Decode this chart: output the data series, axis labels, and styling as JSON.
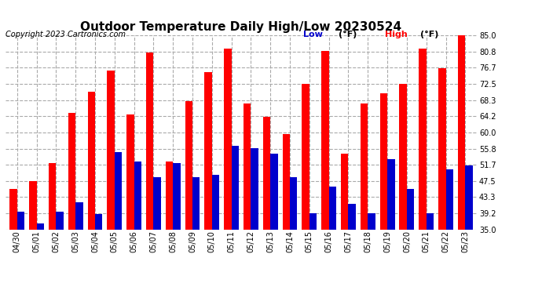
{
  "title": "Outdoor Temperature Daily High/Low 20230524",
  "copyright": "Copyright 2023 Cartronics.com",
  "legend_low": "Low",
  "legend_high": "High",
  "legend_unit": "(°F)",
  "dates": [
    "04/30",
    "05/01",
    "05/02",
    "05/03",
    "05/04",
    "05/05",
    "05/06",
    "05/07",
    "05/08",
    "05/09",
    "05/10",
    "05/11",
    "05/12",
    "05/13",
    "05/14",
    "05/15",
    "05/16",
    "05/17",
    "05/18",
    "05/19",
    "05/20",
    "05/21",
    "05/22",
    "05/23"
  ],
  "highs": [
    45.5,
    47.5,
    52.0,
    65.0,
    70.5,
    76.0,
    64.5,
    80.5,
    52.5,
    68.0,
    75.5,
    81.5,
    67.5,
    64.0,
    59.5,
    72.5,
    81.0,
    54.5,
    67.5,
    70.0,
    72.5,
    81.5,
    76.5,
    85.0
  ],
  "lows": [
    39.5,
    36.5,
    39.5,
    42.0,
    39.0,
    55.0,
    52.5,
    48.5,
    52.0,
    48.5,
    49.0,
    56.5,
    56.0,
    54.5,
    48.5,
    39.2,
    46.0,
    41.5,
    39.2,
    53.0,
    45.5,
    39.2,
    50.5,
    51.5
  ],
  "ylim": [
    35.0,
    85.0
  ],
  "yticks": [
    35.0,
    39.2,
    43.3,
    47.5,
    51.7,
    55.8,
    60.0,
    64.2,
    68.3,
    72.5,
    76.7,
    80.8,
    85.0
  ],
  "bar_width": 0.38,
  "high_color": "#ff0000",
  "low_color": "#0000cc",
  "background_color": "#ffffff",
  "grid_color": "#aaaaaa",
  "title_fontsize": 11,
  "copyright_fontsize": 7,
  "tick_fontsize": 7,
  "legend_fontsize": 8
}
